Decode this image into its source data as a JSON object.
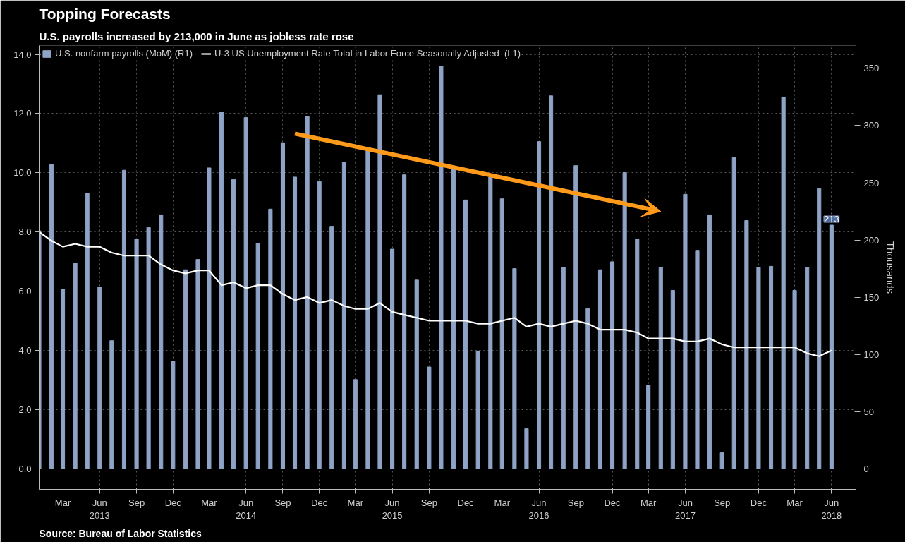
{
  "chart_data": {
    "type": "bar",
    "title": "Topping Forecasts",
    "subtitle": "U.S. payrolls increased by 213,000 in June as jobless rate rose",
    "y2label": "Thousands",
    "x": [
      "2013-01",
      "2013-02",
      "2013-03",
      "2013-04",
      "2013-05",
      "2013-06",
      "2013-07",
      "2013-08",
      "2013-09",
      "2013-10",
      "2013-11",
      "2013-12",
      "2014-01",
      "2014-02",
      "2014-03",
      "2014-04",
      "2014-05",
      "2014-06",
      "2014-07",
      "2014-08",
      "2014-09",
      "2014-10",
      "2014-11",
      "2014-12",
      "2015-01",
      "2015-02",
      "2015-03",
      "2015-04",
      "2015-05",
      "2015-06",
      "2015-07",
      "2015-08",
      "2015-09",
      "2015-10",
      "2015-11",
      "2015-12",
      "2016-01",
      "2016-02",
      "2016-03",
      "2016-04",
      "2016-05",
      "2016-06",
      "2016-07",
      "2016-08",
      "2016-09",
      "2016-10",
      "2016-11",
      "2016-12",
      "2017-01",
      "2017-02",
      "2017-03",
      "2017-04",
      "2017-05",
      "2017-06",
      "2017-07",
      "2017-08",
      "2017-09",
      "2017-10",
      "2017-11",
      "2017-12",
      "2018-01",
      "2018-02",
      "2018-03",
      "2018-04",
      "2018-05",
      "2018-06"
    ],
    "series": [
      {
        "name": "U.S. nonfarm payrolls (MoM) (R1)",
        "axis": "y2",
        "color": "#8fa3c6",
        "values": [
          208,
          266,
          157,
          180,
          241,
          159,
          112,
          261,
          201,
          211,
          222,
          94,
          174,
          183,
          263,
          312,
          253,
          307,
          197,
          227,
          285,
          255,
          308,
          251,
          212,
          268,
          78,
          278,
          327,
          192,
          257,
          165,
          89,
          352,
          262,
          235,
          103,
          255,
          236,
          175,
          35,
          286,
          326,
          176,
          265,
          140,
          174,
          181,
          259,
          201,
          73,
          176,
          156,
          240,
          191,
          222,
          14,
          272,
          217,
          176,
          177,
          325,
          156,
          176,
          245,
          213
        ],
        "value_labels": [
          null,
          null,
          null,
          null,
          null,
          null,
          null,
          null,
          null,
          null,
          null,
          null,
          null,
          null,
          null,
          null,
          null,
          null,
          null,
          null,
          null,
          null,
          null,
          null,
          null,
          null,
          null,
          null,
          null,
          null,
          null,
          null,
          null,
          null,
          null,
          null,
          null,
          null,
          null,
          null,
          null,
          null,
          null,
          null,
          null,
          null,
          null,
          null,
          null,
          null,
          null,
          null,
          null,
          null,
          null,
          null,
          null,
          null,
          null,
          null,
          null,
          null,
          null,
          null,
          null,
          "213"
        ]
      },
      {
        "name": "U-3 US Unemployment Rate Total in Labor Force Seasonally Adjusted  (L1)",
        "type": "line",
        "color": "#ffffff",
        "values": [
          8.0,
          7.7,
          7.5,
          7.6,
          7.5,
          7.5,
          7.3,
          7.2,
          7.2,
          7.2,
          6.9,
          6.7,
          6.6,
          6.7,
          6.7,
          6.2,
          6.3,
          6.1,
          6.2,
          6.2,
          5.9,
          5.7,
          5.8,
          5.6,
          5.7,
          5.5,
          5.4,
          5.4,
          5.6,
          5.3,
          5.2,
          5.1,
          5.0,
          5.0,
          5.0,
          5.0,
          4.9,
          4.9,
          5.0,
          5.1,
          4.8,
          4.9,
          4.8,
          4.9,
          5.0,
          4.9,
          4.7,
          4.7,
          4.7,
          4.6,
          4.4,
          4.4,
          4.4,
          4.3,
          4.3,
          4.4,
          4.2,
          4.1,
          4.1,
          4.1,
          4.1,
          4.1,
          4.1,
          3.9,
          3.8,
          4.0
        ]
      }
    ],
    "xlim": [
      "2013-01",
      "2018-08"
    ],
    "xticks": [
      {
        "value": "2013-03",
        "label": "Mar"
      },
      {
        "value": "2013-06",
        "label": "Jun\n2013"
      },
      {
        "value": "2013-09",
        "label": "Sep"
      },
      {
        "value": "2013-12",
        "label": "Dec"
      },
      {
        "value": "2014-03",
        "label": "Mar"
      },
      {
        "value": "2014-06",
        "label": "Jun\n2014"
      },
      {
        "value": "2014-09",
        "label": "Sep"
      },
      {
        "value": "2014-12",
        "label": "Dec"
      },
      {
        "value": "2015-03",
        "label": "Mar"
      },
      {
        "value": "2015-06",
        "label": "Jun\n2015"
      },
      {
        "value": "2015-09",
        "label": "Sep"
      },
      {
        "value": "2015-12",
        "label": "Dec"
      },
      {
        "value": "2016-03",
        "label": "Mar"
      },
      {
        "value": "2016-06",
        "label": "Jun\n2016"
      },
      {
        "value": "2016-09",
        "label": "Sep"
      },
      {
        "value": "2016-12",
        "label": "Dec"
      },
      {
        "value": "2017-03",
        "label": "Mar"
      },
      {
        "value": "2017-06",
        "label": "Jun\n2017"
      },
      {
        "value": "2017-09",
        "label": "Sep"
      },
      {
        "value": "2017-12",
        "label": "Dec"
      },
      {
        "value": "2018-03",
        "label": "Mar"
      },
      {
        "value": "2018-06",
        "label": "Jun\n2018"
      }
    ],
    "ylim": [
      -0.7,
      14.3
    ],
    "yticks": [
      {
        "value": 0,
        "label": "0.0"
      },
      {
        "value": 2,
        "label": "2.0"
      },
      {
        "value": 4,
        "label": "4.0"
      },
      {
        "value": 6,
        "label": "6.0"
      },
      {
        "value": 8,
        "label": "8.0"
      },
      {
        "value": 10,
        "label": "10.0"
      },
      {
        "value": 12,
        "label": "12.0"
      },
      {
        "value": 14,
        "label": "14.0"
      }
    ],
    "y2lim": [
      -18,
      370
    ],
    "y2ticks": [
      0,
      50,
      100,
      150,
      200,
      250,
      300,
      350
    ],
    "annotations": [
      "Source: Bureau of Labor Statistics"
    ],
    "grid": true,
    "legend": "top left"
  }
}
